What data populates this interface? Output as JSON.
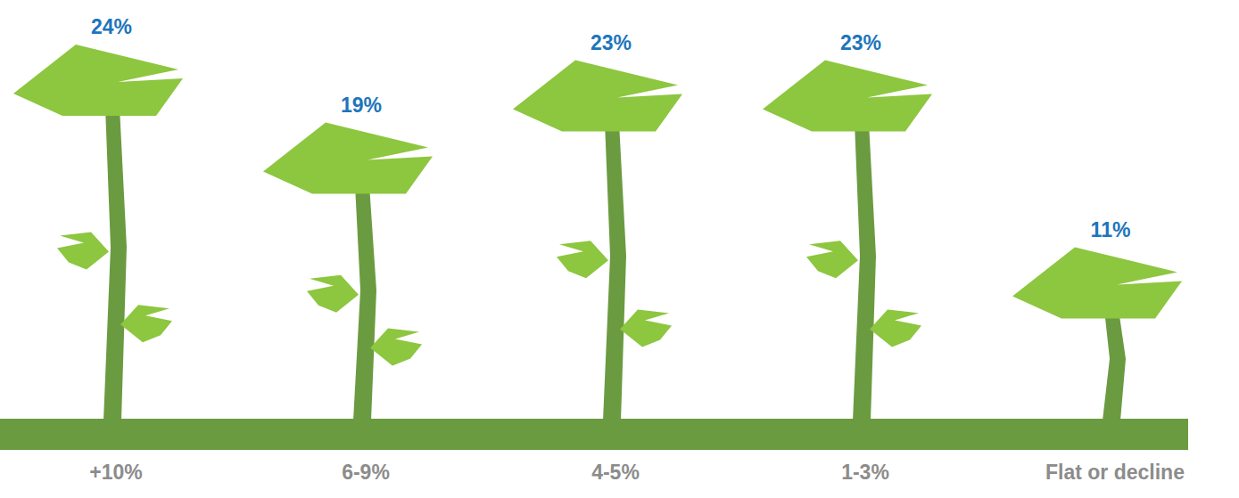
{
  "chart_data": {
    "type": "bar",
    "categories": [
      "+10%",
      "6-9%",
      "4-5%",
      "1-3%",
      "Flat or decline"
    ],
    "values": [
      24,
      19,
      23,
      23,
      11
    ],
    "value_labels": [
      "24%",
      "19%",
      "23%",
      "23%",
      "11%"
    ],
    "data_labels": true,
    "tick_labels": "x",
    "grid": false
  }
}
